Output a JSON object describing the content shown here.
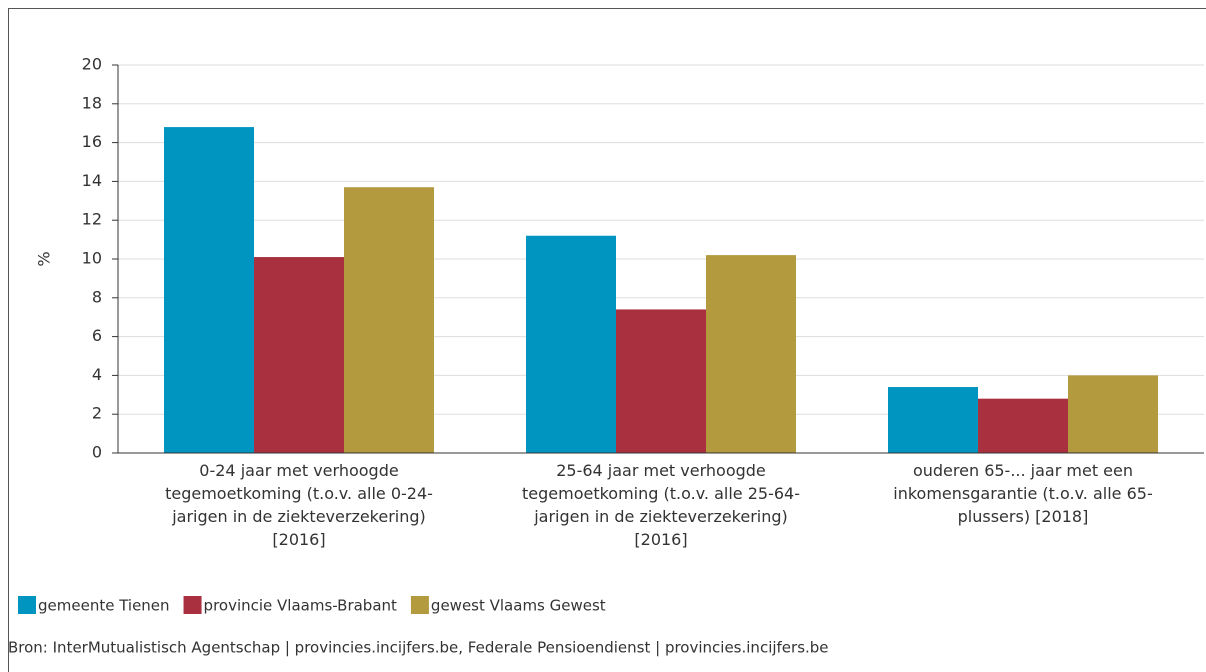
{
  "chart_data": {
    "type": "bar",
    "y_label": "%",
    "categories": [
      "0-24 jaar met verhoogde tegemoetkoming (t.o.v. alle 0-24-jarigen in de ziekteverzekering) [2016]",
      "25-64 jaar met verhoogde tegemoetkoming (t.o.v. alle 25-64-jarigen in de ziekteverzekering) [2016]",
      "ouderen 65-... jaar met een inkomensgarantie (t.o.v. alle 65-plussers) [2018]"
    ],
    "series": [
      {
        "name": "gemeente Tienen",
        "color": "#0095c0",
        "values": [
          16.8,
          11.2,
          3.4
        ]
      },
      {
        "name": "provincie Vlaams-Brabant",
        "color": "#a8303f",
        "values": [
          10.1,
          7.4,
          2.8
        ]
      },
      {
        "name": "gewest Vlaams Gewest",
        "color": "#b39a3f",
        "values": [
          13.7,
          10.2,
          4.0
        ]
      }
    ],
    "ylim": [
      0,
      20
    ],
    "yticks": [
      0,
      2,
      4,
      6,
      8,
      10,
      12,
      14,
      16,
      18,
      20
    ],
    "grid": true,
    "source": "Bron: InterMutualistisch Agentschap | provincies.incijfers.be, Federale Pensioendienst | provincies.incijfers.be"
  }
}
